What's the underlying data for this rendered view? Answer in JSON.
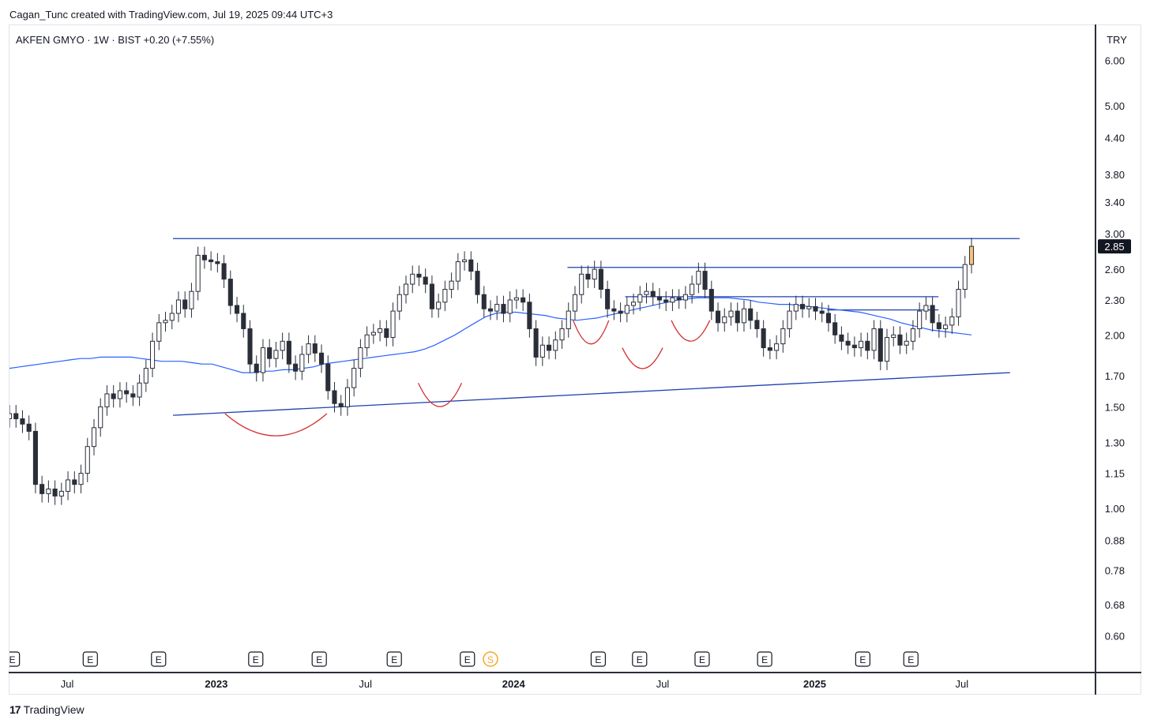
{
  "caption": "Cagan_Tunc created with TradingView.com, Jul 19, 2025 09:44 UTC+3",
  "symbol_line": "AKFEN GMYO · 1W · BIST  +0.20 (+7.55%)",
  "currency": "TRY",
  "footer": {
    "logo_mark": "17",
    "brand": "TradingView"
  },
  "colors": {
    "bull": "#ffffff",
    "bear": "#2a2e39",
    "ma": "#2962ff",
    "trend": "#1e40af",
    "arc": "#d32f2f",
    "last_bar_highlight": "#f4c27a"
  },
  "chart_data": {
    "type": "candlestick",
    "timeframe": "1W",
    "y_scale": "log",
    "y_range": [
      0.52,
      6.9
    ],
    "y_ticks": [
      "6.00",
      "5.00",
      "4.40",
      "3.80",
      "3.40",
      "3.00",
      "2.60",
      "2.30",
      "2.00",
      "1.70",
      "1.50",
      "1.30",
      "1.15",
      "1.00",
      "0.88",
      "0.78",
      "0.68",
      "0.60"
    ],
    "last_price": "2.85",
    "x_ticks": [
      {
        "label": "Jul",
        "bold": false
      },
      {
        "label": "2023",
        "bold": true
      },
      {
        "label": "Jul",
        "bold": false
      },
      {
        "label": "2024",
        "bold": true
      },
      {
        "label": "Jul",
        "bold": false
      },
      {
        "label": "2025",
        "bold": true
      },
      {
        "label": "Jul",
        "bold": false
      }
    ],
    "event_markers": [
      "E",
      "E",
      "E",
      "E",
      "E",
      "E",
      "E",
      "S",
      "E",
      "E",
      "E",
      "E",
      "E",
      "E"
    ],
    "resistance_level": 2.94,
    "support_line": [
      [
        1.45,
        0
      ],
      [
        1.72,
        1
      ]
    ],
    "levels": [
      {
        "price": 2.62,
        "from": 0.58,
        "to": 0.93
      },
      {
        "price": 2.33,
        "from": 0.64,
        "to": 0.9
      },
      {
        "price": 2.21,
        "from": 0.85,
        "to": 0.9
      }
    ],
    "closes": [
      1.46,
      1.43,
      1.4,
      1.36,
      1.1,
      1.06,
      1.08,
      1.05,
      1.07,
      1.12,
      1.1,
      1.15,
      1.28,
      1.38,
      1.5,
      1.58,
      1.55,
      1.6,
      1.58,
      1.56,
      1.65,
      1.75,
      1.95,
      2.1,
      2.12,
      2.18,
      2.3,
      2.22,
      2.38,
      2.75,
      2.7,
      2.68,
      2.66,
      2.5,
      2.25,
      2.18,
      2.05,
      1.78,
      1.72,
      1.9,
      1.82,
      1.88,
      1.95,
      1.78,
      1.73,
      1.85,
      1.93,
      1.86,
      1.78,
      1.6,
      1.52,
      1.5,
      1.62,
      1.75,
      1.9,
      2.0,
      2.02,
      2.05,
      1.98,
      2.2,
      2.35,
      2.45,
      2.55,
      2.52,
      2.45,
      2.22,
      2.28,
      2.4,
      2.48,
      2.68,
      2.7,
      2.58,
      2.35,
      2.22,
      2.2,
      2.26,
      2.18,
      2.3,
      2.32,
      2.28,
      2.05,
      1.83,
      1.92,
      1.88,
      1.96,
      2.05,
      2.2,
      2.35,
      2.55,
      2.5,
      2.6,
      2.4,
      2.22,
      2.2,
      2.18,
      2.25,
      2.28,
      2.35,
      2.38,
      2.33,
      2.3,
      2.28,
      2.32,
      2.3,
      2.35,
      2.45,
      2.58,
      2.4,
      2.2,
      2.1,
      2.15,
      2.2,
      2.1,
      2.22,
      2.12,
      2.05,
      1.9,
      1.88,
      1.93,
      2.05,
      2.2,
      2.26,
      2.22,
      2.24,
      2.2,
      2.18,
      2.1,
      2.0,
      1.95,
      1.92,
      1.9,
      1.95,
      1.88,
      2.05,
      1.8,
      1.98,
      2.0,
      1.92,
      1.95,
      2.05,
      2.2,
      2.25,
      2.1,
      2.05,
      2.08,
      2.15,
      2.4,
      2.65,
      2.85
    ],
    "ma": [
      1.75,
      1.76,
      1.77,
      1.78,
      1.79,
      1.8,
      1.81,
      1.82,
      1.82,
      1.83,
      1.83,
      1.83,
      1.83,
      1.82,
      1.81,
      1.8,
      1.8,
      1.8,
      1.79,
      1.78,
      1.78,
      1.76,
      1.74,
      1.72,
      1.72,
      1.73,
      1.73,
      1.74,
      1.74,
      1.75,
      1.76,
      1.78,
      1.79,
      1.8,
      1.81,
      1.82,
      1.83,
      1.84,
      1.85,
      1.86,
      1.87,
      1.89,
      1.92,
      1.96,
      2.0,
      2.05,
      2.1,
      2.15,
      2.18,
      2.19,
      2.19,
      2.18,
      2.17,
      2.16,
      2.14,
      2.13,
      2.12,
      2.13,
      2.14,
      2.16,
      2.18,
      2.2,
      2.22,
      2.24,
      2.26,
      2.28,
      2.3,
      2.31,
      2.32,
      2.32,
      2.32,
      2.32,
      2.31,
      2.3,
      2.28,
      2.27,
      2.26,
      2.26,
      2.25,
      2.24,
      2.23,
      2.22,
      2.21,
      2.2,
      2.19,
      2.17,
      2.15,
      2.13,
      2.1,
      2.08,
      2.06,
      2.04,
      2.03,
      2.02,
      2.01,
      2.0
    ],
    "arcs": [
      {
        "from": 0.224,
        "to": 0.33,
        "price": 1.46,
        "depth": 0.085
      },
      {
        "from": 0.425,
        "to": 0.47,
        "price": 1.65,
        "depth": 0.09
      },
      {
        "from": 0.586,
        "to": 0.623,
        "price": 2.12,
        "depth": 0.09
      },
      {
        "from": 0.637,
        "to": 0.679,
        "price": 1.9,
        "depth": 0.08
      },
      {
        "from": 0.688,
        "to": 0.728,
        "price": 2.12,
        "depth": 0.08
      }
    ]
  }
}
